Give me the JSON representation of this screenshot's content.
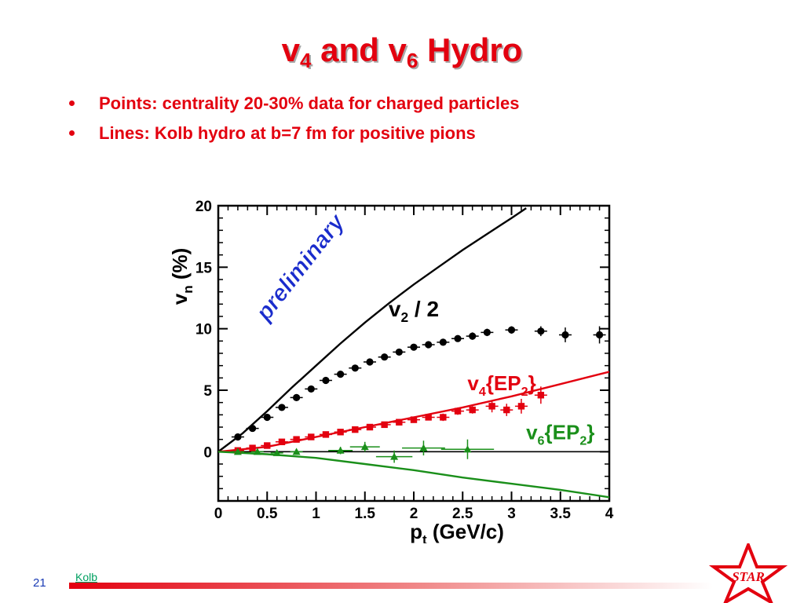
{
  "slide": {
    "title_part1": "v",
    "title_sub1": "4",
    "title_part2": " and v",
    "title_sub2": "6",
    "title_part3": " Hydro",
    "bullets": [
      "Points: centrality 20-30% data for charged particles",
      "Lines: Kolb hydro at b=7 fm for positive pions"
    ],
    "page_number": "21",
    "footer_link": "Kolb",
    "logo_text": "STAR"
  },
  "colors": {
    "title": "#e3000f",
    "v2": "#000000",
    "v4": "#e3000f",
    "v6": "#1a8f1a",
    "watermark": "#1a2ccc"
  },
  "chart_data": {
    "type": "scatter",
    "xlabel": "p",
    "xlabel_sub": "t",
    "xlabel_unit": " (GeV/c)",
    "ylabel": "v",
    "ylabel_sub": "n",
    "ylabel_unit": " (%)",
    "xlim": [
      0,
      4
    ],
    "ylim": [
      -4,
      20
    ],
    "xticks": [
      "0",
      "0.5",
      "1",
      "1.5",
      "2",
      "2.5",
      "3",
      "3.5",
      "4"
    ],
    "yticks": [
      "0",
      "5",
      "10",
      "15",
      "20"
    ],
    "watermark": "preliminary",
    "series": [
      {
        "name": "v2 / 2",
        "label_main": "v",
        "label_sub": "2",
        "label_rest": " / 2",
        "color": "#000000",
        "points": [
          [
            0.2,
            1.2
          ],
          [
            0.35,
            1.9
          ],
          [
            0.5,
            2.8
          ],
          [
            0.65,
            3.6
          ],
          [
            0.8,
            4.4
          ],
          [
            0.95,
            5.1
          ],
          [
            1.1,
            5.8
          ],
          [
            1.25,
            6.3
          ],
          [
            1.4,
            6.8
          ],
          [
            1.55,
            7.3
          ],
          [
            1.7,
            7.7
          ],
          [
            1.85,
            8.1
          ],
          [
            2.0,
            8.5
          ],
          [
            2.15,
            8.7
          ],
          [
            2.3,
            8.9
          ],
          [
            2.45,
            9.2
          ],
          [
            2.6,
            9.4
          ],
          [
            2.75,
            9.7
          ],
          [
            3.0,
            9.9
          ],
          [
            3.3,
            9.8
          ],
          [
            3.55,
            9.5
          ],
          [
            3.9,
            9.5
          ]
        ],
        "errors": [
          0.25,
          0.25,
          0.25,
          0.25,
          0.25,
          0.25,
          0.25,
          0.25,
          0.25,
          0.25,
          0.25,
          0.25,
          0.25,
          0.25,
          0.25,
          0.25,
          0.3,
          0.3,
          0.3,
          0.4,
          0.6,
          0.7
        ],
        "model": [
          [
            0,
            0
          ],
          [
            0.25,
            1.5
          ],
          [
            0.5,
            3.3
          ],
          [
            0.75,
            5.2
          ],
          [
            1.0,
            7.0
          ],
          [
            1.25,
            8.8
          ],
          [
            1.5,
            10.5
          ],
          [
            1.75,
            12.1
          ],
          [
            2.0,
            13.6
          ],
          [
            2.25,
            15.0
          ],
          [
            2.5,
            16.4
          ],
          [
            2.75,
            17.7
          ],
          [
            3.0,
            19.0
          ],
          [
            3.15,
            19.8
          ]
        ]
      },
      {
        "name": "v4{EP2}",
        "label_main": "v",
        "label_sub": "4",
        "label_rest": "{EP",
        "label_sub2": "2",
        "label_end": "}",
        "color": "#e3000f",
        "points": [
          [
            0.2,
            0.1
          ],
          [
            0.35,
            0.3
          ],
          [
            0.5,
            0.5
          ],
          [
            0.65,
            0.8
          ],
          [
            0.8,
            1.0
          ],
          [
            0.95,
            1.2
          ],
          [
            1.1,
            1.4
          ],
          [
            1.25,
            1.6
          ],
          [
            1.4,
            1.8
          ],
          [
            1.55,
            2.0
          ],
          [
            1.7,
            2.2
          ],
          [
            1.85,
            2.4
          ],
          [
            2.0,
            2.6
          ],
          [
            2.15,
            2.8
          ],
          [
            2.3,
            2.8
          ],
          [
            2.45,
            3.3
          ],
          [
            2.6,
            3.4
          ],
          [
            2.8,
            3.7
          ],
          [
            2.95,
            3.4
          ],
          [
            3.1,
            3.7
          ],
          [
            3.3,
            4.6
          ]
        ],
        "errors": [
          0.2,
          0.2,
          0.2,
          0.2,
          0.2,
          0.2,
          0.2,
          0.2,
          0.2,
          0.2,
          0.2,
          0.2,
          0.2,
          0.2,
          0.3,
          0.3,
          0.3,
          0.5,
          0.5,
          0.6,
          0.7
        ],
        "model": [
          [
            0,
            0
          ],
          [
            0.5,
            0.4
          ],
          [
            1.0,
            1.2
          ],
          [
            1.5,
            2.0
          ],
          [
            2.0,
            2.8
          ],
          [
            2.5,
            3.6
          ],
          [
            3.0,
            4.5
          ],
          [
            3.5,
            5.5
          ],
          [
            4.0,
            6.5
          ]
        ]
      },
      {
        "name": "v6{EP2}",
        "label_main": "v",
        "label_sub": "6",
        "label_rest": "{EP",
        "label_sub2": "2",
        "label_end": "}",
        "color": "#1a8f1a",
        "points": [
          [
            0.2,
            0.0
          ],
          [
            0.4,
            0.0
          ],
          [
            0.6,
            -0.1
          ],
          [
            0.8,
            0.0
          ],
          [
            1.25,
            0.1
          ],
          [
            1.5,
            0.4
          ],
          [
            1.8,
            -0.4
          ],
          [
            2.1,
            0.3
          ],
          [
            2.55,
            0.2
          ]
        ],
        "errors": [
          0.2,
          0.2,
          0.2,
          0.2,
          0.3,
          0.4,
          0.5,
          0.6,
          0.8
        ],
        "model": [
          [
            0,
            0
          ],
          [
            0.5,
            -0.2
          ],
          [
            1.0,
            -0.5
          ],
          [
            1.5,
            -1.0
          ],
          [
            2.0,
            -1.5
          ],
          [
            2.5,
            -2.1
          ],
          [
            3.0,
            -2.6
          ],
          [
            3.5,
            -3.1
          ],
          [
            4.0,
            -3.7
          ]
        ]
      }
    ]
  }
}
